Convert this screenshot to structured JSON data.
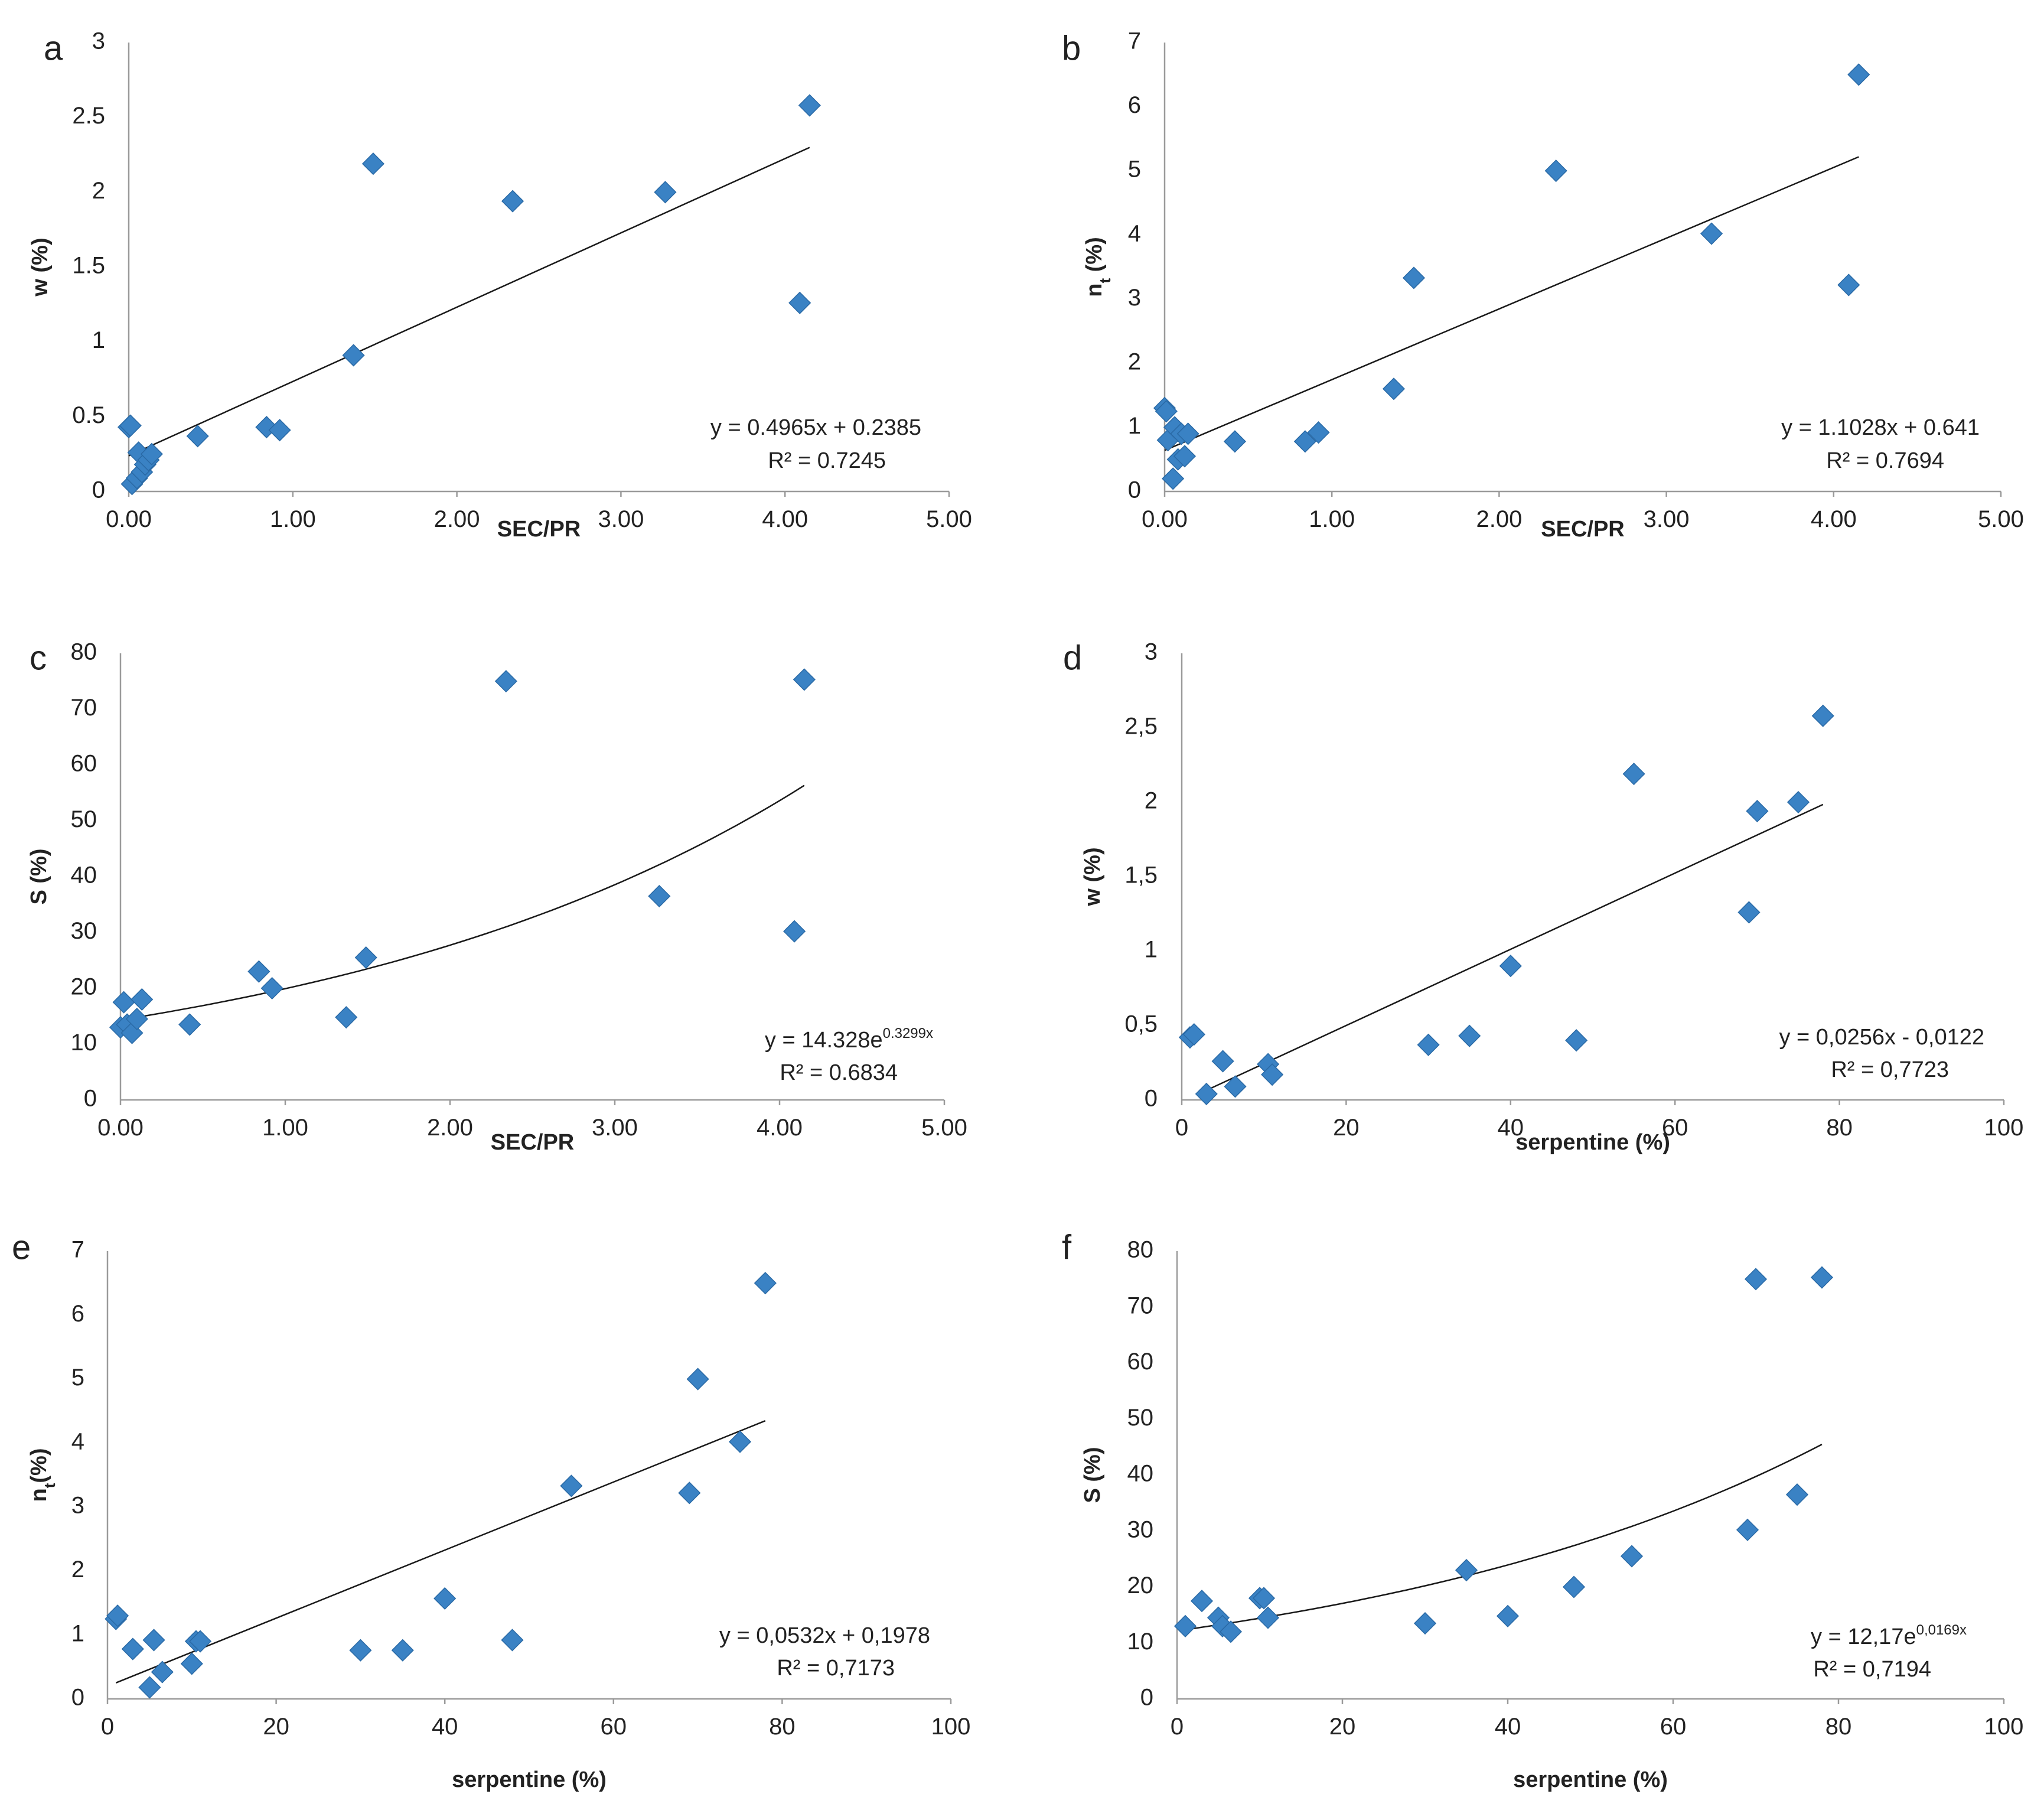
{
  "colors": {
    "marker": "#3a82c4",
    "marker_edge": "#2a6aa6",
    "trend": "#1a1a1a",
    "axis": "#9a9a9a"
  },
  "chart_data": [
    {
      "panel": "a",
      "type": "scatter",
      "xlabel": "SEC/PR",
      "ylabel": "w (%)",
      "ylabel_sub": "",
      "xlim": [
        0,
        5
      ],
      "ylim": [
        0,
        3
      ],
      "xticks": [
        "0.00",
        "1.00",
        "2.00",
        "3.00",
        "4.00",
        "5.00"
      ],
      "yticks": [
        "0",
        "0.5",
        "1",
        "1.5",
        "2",
        "2.5",
        "3"
      ],
      "points": [
        [
          0.0,
          0.43
        ],
        [
          0.01,
          0.44
        ],
        [
          0.02,
          0.05
        ],
        [
          0.05,
          0.09
        ],
        [
          0.06,
          0.26
        ],
        [
          0.08,
          0.13
        ],
        [
          0.1,
          0.18
        ],
        [
          0.12,
          0.21
        ],
        [
          0.14,
          0.25
        ],
        [
          0.42,
          0.37
        ],
        [
          0.84,
          0.43
        ],
        [
          0.92,
          0.41
        ],
        [
          1.37,
          0.91
        ],
        [
          1.49,
          2.19
        ],
        [
          2.34,
          1.94
        ],
        [
          3.27,
          2.0
        ],
        [
          4.09,
          1.26
        ],
        [
          4.15,
          2.58
        ]
      ],
      "trend": {
        "kind": "linear",
        "a": 0.4965,
        "b": 0.2385,
        "x_range": [
          0,
          4.15
        ]
      },
      "eq_main": "y = 0.4965x + 0.2385",
      "eq_sup": "",
      "r2": "R² = 0.7245"
    },
    {
      "panel": "b",
      "type": "scatter",
      "xlabel": "SEC/PR",
      "ylabel": "n",
      "ylabel_sub": "t",
      "ylabel_rest": " (%)",
      "xlim": [
        0,
        5
      ],
      "ylim": [
        0,
        7
      ],
      "xticks": [
        "0.00",
        "1.00",
        "2.00",
        "3.00",
        "4.00",
        "5.00"
      ],
      "yticks": [
        "0",
        "1",
        "2",
        "3",
        "4",
        "5",
        "6",
        "7"
      ],
      "points": [
        [
          0.0,
          1.3
        ],
        [
          0.01,
          1.25
        ],
        [
          0.02,
          0.8
        ],
        [
          0.05,
          0.2
        ],
        [
          0.06,
          1.0
        ],
        [
          0.08,
          0.5
        ],
        [
          0.1,
          0.9
        ],
        [
          0.12,
          0.55
        ],
        [
          0.14,
          0.9
        ],
        [
          0.42,
          0.78
        ],
        [
          0.84,
          0.78
        ],
        [
          0.92,
          0.92
        ],
        [
          1.37,
          1.6
        ],
        [
          1.49,
          3.33
        ],
        [
          2.34,
          5.0
        ],
        [
          3.27,
          4.02
        ],
        [
          4.09,
          3.22
        ],
        [
          4.15,
          6.5
        ]
      ],
      "trend": {
        "kind": "linear",
        "a": 1.1028,
        "b": 0.641,
        "x_range": [
          0,
          4.15
        ]
      },
      "eq_main": "y = 1.1028x + 0.641",
      "eq_sup": "",
      "r2": "R² = 0.7694"
    },
    {
      "panel": "c",
      "type": "scatter",
      "xlabel": "SEC/PR",
      "ylabel": "S (%)",
      "ylabel_sub": "",
      "xlim": [
        0,
        5
      ],
      "ylim": [
        0,
        80
      ],
      "xticks": [
        "0.00",
        "1.00",
        "2.00",
        "3.00",
        "4.00",
        "5.00"
      ],
      "yticks": [
        "0",
        "10",
        "20",
        "30",
        "40",
        "50",
        "60",
        "70",
        "80"
      ],
      "points": [
        [
          0.0,
          13.0
        ],
        [
          0.02,
          17.5
        ],
        [
          0.04,
          13.5
        ],
        [
          0.07,
          12.0
        ],
        [
          0.1,
          14.5
        ],
        [
          0.13,
          18.0
        ],
        [
          0.42,
          13.5
        ],
        [
          0.84,
          23.0
        ],
        [
          0.92,
          20.0
        ],
        [
          1.37,
          14.8
        ],
        [
          1.49,
          25.5
        ],
        [
          2.34,
          75.0
        ],
        [
          3.27,
          36.5
        ],
        [
          4.09,
          30.2
        ],
        [
          4.15,
          75.3
        ]
      ],
      "trend": {
        "kind": "exp",
        "a": 14.328,
        "b": 0.3299,
        "x_range": [
          0,
          4.15
        ]
      },
      "eq_main": "y = 14.328e",
      "eq_sup": "0.3299x",
      "r2": "R² = 0.6834"
    },
    {
      "panel": "d",
      "type": "scatter",
      "xlabel": "serpentine (%)",
      "ylabel": "w (%)",
      "ylabel_sub": "",
      "xlim": [
        0,
        100
      ],
      "ylim": [
        0,
        3
      ],
      "xticks": [
        "0",
        "20",
        "40",
        "60",
        "80",
        "100"
      ],
      "yticks": [
        "0",
        "0,5",
        "1",
        "1,5",
        "2",
        "2,5",
        "3"
      ],
      "points": [
        [
          1,
          0.42
        ],
        [
          1.5,
          0.44
        ],
        [
          3,
          0.04
        ],
        [
          5,
          0.26
        ],
        [
          6.5,
          0.09
        ],
        [
          10.5,
          0.24
        ],
        [
          11,
          0.17
        ],
        [
          30,
          0.37
        ],
        [
          35,
          0.43
        ],
        [
          40,
          0.9
        ],
        [
          48,
          0.4
        ],
        [
          55,
          2.19
        ],
        [
          69,
          1.26
        ],
        [
          70,
          1.94
        ],
        [
          75,
          2.0
        ],
        [
          78,
          2.58
        ]
      ],
      "trend": {
        "kind": "linear",
        "a": 0.0256,
        "b": -0.0122,
        "x_range": [
          2.2,
          78
        ]
      },
      "eq_main": "y = 0,0256x - 0,0122",
      "eq_sup": "",
      "r2": "R² = 0,7723"
    },
    {
      "panel": "e",
      "type": "scatter",
      "xlabel": "serpentine (%)",
      "ylabel": "n",
      "ylabel_sub": "t",
      "ylabel_rest": "(%)",
      "xlim": [
        0,
        100
      ],
      "ylim": [
        0,
        7
      ],
      "xticks": [
        "0",
        "20",
        "40",
        "60",
        "80",
        "100"
      ],
      "yticks": [
        "0",
        "1",
        "2",
        "3",
        "4",
        "5",
        "6",
        "7"
      ],
      "points": [
        [
          1,
          1.25
        ],
        [
          1.2,
          1.3
        ],
        [
          3,
          0.78
        ],
        [
          5,
          0.18
        ],
        [
          5.5,
          0.92
        ],
        [
          6.5,
          0.42
        ],
        [
          10,
          0.55
        ],
        [
          10.5,
          0.9
        ],
        [
          11,
          0.9
        ],
        [
          30,
          0.76
        ],
        [
          35,
          0.76
        ],
        [
          40,
          1.57
        ],
        [
          48,
          0.92
        ],
        [
          55,
          3.33
        ],
        [
          69,
          3.22
        ],
        [
          70,
          5.0
        ],
        [
          75,
          4.02
        ],
        [
          78,
          6.5
        ]
      ],
      "trend": {
        "kind": "linear",
        "a": 0.0532,
        "b": 0.1978,
        "x_range": [
          1,
          78
        ]
      },
      "eq_main": "y = 0,0532x + 0,1978",
      "eq_sup": "",
      "r2": "R² = 0,7173"
    },
    {
      "panel": "f",
      "type": "scatter",
      "xlabel": "serpentine (%)",
      "ylabel": "S (%)",
      "ylabel_sub": "",
      "xlim": [
        0,
        100
      ],
      "ylim": [
        0,
        80
      ],
      "xticks": [
        "0",
        "20",
        "40",
        "60",
        "80",
        "100"
      ],
      "yticks": [
        "0",
        "10",
        "20",
        "30",
        "40",
        "50",
        "60",
        "70",
        "80"
      ],
      "points": [
        [
          1,
          13.0
        ],
        [
          3,
          17.5
        ],
        [
          5,
          14.5
        ],
        [
          5.5,
          13.0
        ],
        [
          6.5,
          12.0
        ],
        [
          10,
          18.0
        ],
        [
          10.5,
          18.0
        ],
        [
          11,
          14.5
        ],
        [
          30,
          13.5
        ],
        [
          35,
          23.0
        ],
        [
          40,
          14.8
        ],
        [
          48,
          20.0
        ],
        [
          55,
          25.5
        ],
        [
          69,
          30.2
        ],
        [
          70,
          75.0
        ],
        [
          75,
          36.5
        ],
        [
          78,
          75.3
        ]
      ],
      "trend": {
        "kind": "exp",
        "a": 12.17,
        "b": 0.0169,
        "x_range": [
          1,
          78
        ]
      },
      "eq_main": "y = 12,17e",
      "eq_sup": "0,0169x",
      "r2": "R² = 0,7194"
    }
  ]
}
